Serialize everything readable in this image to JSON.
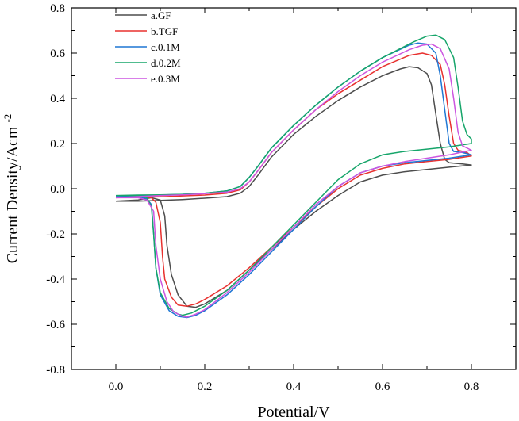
{
  "chart_data": {
    "type": "line",
    "title": "",
    "xlabel": "Potential/V",
    "ylabel": {
      "text": "Current Density/Acm",
      "superscript": "-2"
    },
    "xlim": [
      -0.1,
      0.9
    ],
    "ylim": [
      -0.8,
      0.8
    ],
    "xticks": [
      0.0,
      0.2,
      0.4,
      0.6,
      0.8
    ],
    "yticks": [
      -0.8,
      -0.6,
      -0.4,
      -0.2,
      0.0,
      0.2,
      0.4,
      0.6,
      0.8
    ],
    "xtick_labels": [
      "0.0",
      "0.2",
      "0.4",
      "0.6",
      "0.8"
    ],
    "ytick_labels": [
      "-0.8",
      "-0.6",
      "-0.4",
      "-0.2",
      "0.0",
      "0.2",
      "0.4",
      "0.6",
      "0.8"
    ],
    "grid": false,
    "legend_position": "top-left",
    "series": [
      {
        "name": "a.GF",
        "color": "#4d4d4d",
        "points": [
          [
            0.0,
            -0.055
          ],
          [
            0.05,
            -0.05
          ],
          [
            0.08,
            -0.04
          ],
          [
            0.1,
            -0.05
          ],
          [
            0.11,
            -0.12
          ],
          [
            0.115,
            -0.25
          ],
          [
            0.125,
            -0.38
          ],
          [
            0.14,
            -0.47
          ],
          [
            0.16,
            -0.52
          ],
          [
            0.18,
            -0.525
          ],
          [
            0.2,
            -0.51
          ],
          [
            0.25,
            -0.45
          ],
          [
            0.3,
            -0.36
          ],
          [
            0.35,
            -0.27
          ],
          [
            0.4,
            -0.18
          ],
          [
            0.45,
            -0.1
          ],
          [
            0.5,
            -0.03
          ],
          [
            0.55,
            0.03
          ],
          [
            0.6,
            0.06
          ],
          [
            0.65,
            0.075
          ],
          [
            0.7,
            0.085
          ],
          [
            0.75,
            0.095
          ],
          [
            0.8,
            0.105
          ],
          [
            0.78,
            0.11
          ],
          [
            0.75,
            0.115
          ],
          [
            0.74,
            0.13
          ],
          [
            0.73,
            0.2
          ],
          [
            0.72,
            0.33
          ],
          [
            0.71,
            0.46
          ],
          [
            0.7,
            0.51
          ],
          [
            0.68,
            0.535
          ],
          [
            0.66,
            0.54
          ],
          [
            0.64,
            0.53
          ],
          [
            0.6,
            0.5
          ],
          [
            0.55,
            0.45
          ],
          [
            0.5,
            0.39
          ],
          [
            0.45,
            0.32
          ],
          [
            0.4,
            0.24
          ],
          [
            0.35,
            0.14
          ],
          [
            0.32,
            0.06
          ],
          [
            0.3,
            0.01
          ],
          [
            0.28,
            -0.02
          ],
          [
            0.25,
            -0.035
          ],
          [
            0.2,
            -0.042
          ],
          [
            0.15,
            -0.048
          ],
          [
            0.1,
            -0.052
          ],
          [
            0.05,
            -0.055
          ],
          [
            0.0,
            -0.055
          ]
        ]
      },
      {
        "name": "b.TGF",
        "color": "#e8312f",
        "points": [
          [
            0.0,
            -0.04
          ],
          [
            0.05,
            -0.035
          ],
          [
            0.08,
            -0.04
          ],
          [
            0.09,
            -0.06
          ],
          [
            0.1,
            -0.15
          ],
          [
            0.105,
            -0.3
          ],
          [
            0.11,
            -0.4
          ],
          [
            0.125,
            -0.48
          ],
          [
            0.14,
            -0.515
          ],
          [
            0.16,
            -0.52
          ],
          [
            0.18,
            -0.51
          ],
          [
            0.2,
            -0.49
          ],
          [
            0.25,
            -0.43
          ],
          [
            0.3,
            -0.35
          ],
          [
            0.35,
            -0.26
          ],
          [
            0.4,
            -0.17
          ],
          [
            0.45,
            -0.08
          ],
          [
            0.5,
            0.0
          ],
          [
            0.55,
            0.06
          ],
          [
            0.6,
            0.09
          ],
          [
            0.65,
            0.11
          ],
          [
            0.7,
            0.12
          ],
          [
            0.75,
            0.13
          ],
          [
            0.8,
            0.145
          ],
          [
            0.79,
            0.16
          ],
          [
            0.77,
            0.17
          ],
          [
            0.76,
            0.2
          ],
          [
            0.75,
            0.32
          ],
          [
            0.74,
            0.46
          ],
          [
            0.73,
            0.55
          ],
          [
            0.71,
            0.59
          ],
          [
            0.69,
            0.6
          ],
          [
            0.66,
            0.59
          ],
          [
            0.6,
            0.54
          ],
          [
            0.55,
            0.48
          ],
          [
            0.5,
            0.42
          ],
          [
            0.45,
            0.35
          ],
          [
            0.4,
            0.26
          ],
          [
            0.35,
            0.16
          ],
          [
            0.32,
            0.08
          ],
          [
            0.3,
            0.03
          ],
          [
            0.28,
            -0.005
          ],
          [
            0.25,
            -0.02
          ],
          [
            0.2,
            -0.028
          ],
          [
            0.15,
            -0.032
          ],
          [
            0.1,
            -0.036
          ],
          [
            0.05,
            -0.038
          ],
          [
            0.0,
            -0.04
          ]
        ]
      },
      {
        "name": "c.0.1M",
        "color": "#1f77d4",
        "points": [
          [
            0.0,
            -0.035
          ],
          [
            0.05,
            -0.035
          ],
          [
            0.07,
            -0.045
          ],
          [
            0.08,
            -0.07
          ],
          [
            0.085,
            -0.2
          ],
          [
            0.09,
            -0.35
          ],
          [
            0.1,
            -0.47
          ],
          [
            0.12,
            -0.54
          ],
          [
            0.14,
            -0.565
          ],
          [
            0.16,
            -0.57
          ],
          [
            0.18,
            -0.56
          ],
          [
            0.2,
            -0.54
          ],
          [
            0.25,
            -0.47
          ],
          [
            0.3,
            -0.38
          ],
          [
            0.35,
            -0.28
          ],
          [
            0.4,
            -0.18
          ],
          [
            0.45,
            -0.08
          ],
          [
            0.5,
            0.01
          ],
          [
            0.55,
            0.07
          ],
          [
            0.6,
            0.1
          ],
          [
            0.65,
            0.115
          ],
          [
            0.7,
            0.125
          ],
          [
            0.75,
            0.135
          ],
          [
            0.8,
            0.15
          ],
          [
            0.78,
            0.16
          ],
          [
            0.76,
            0.165
          ],
          [
            0.75,
            0.2
          ],
          [
            0.74,
            0.35
          ],
          [
            0.73,
            0.5
          ],
          [
            0.72,
            0.6
          ],
          [
            0.7,
            0.64
          ],
          [
            0.68,
            0.645
          ],
          [
            0.66,
            0.635
          ],
          [
            0.6,
            0.58
          ],
          [
            0.55,
            0.52
          ],
          [
            0.5,
            0.45
          ],
          [
            0.45,
            0.37
          ],
          [
            0.4,
            0.28
          ],
          [
            0.35,
            0.18
          ],
          [
            0.32,
            0.1
          ],
          [
            0.3,
            0.05
          ],
          [
            0.28,
            0.01
          ],
          [
            0.25,
            -0.01
          ],
          [
            0.2,
            -0.02
          ],
          [
            0.15,
            -0.025
          ],
          [
            0.1,
            -0.028
          ],
          [
            0.05,
            -0.032
          ],
          [
            0.0,
            -0.035
          ]
        ]
      },
      {
        "name": "d.0.2M",
        "color": "#16a56a",
        "points": [
          [
            0.0,
            -0.03
          ],
          [
            0.05,
            -0.03
          ],
          [
            0.07,
            -0.04
          ],
          [
            0.08,
            -0.08
          ],
          [
            0.085,
            -0.2
          ],
          [
            0.09,
            -0.35
          ],
          [
            0.1,
            -0.46
          ],
          [
            0.12,
            -0.53
          ],
          [
            0.14,
            -0.555
          ],
          [
            0.15,
            -0.56
          ],
          [
            0.17,
            -0.55
          ],
          [
            0.2,
            -0.52
          ],
          [
            0.25,
            -0.45
          ],
          [
            0.3,
            -0.36
          ],
          [
            0.35,
            -0.26
          ],
          [
            0.4,
            -0.16
          ],
          [
            0.45,
            -0.06
          ],
          [
            0.5,
            0.04
          ],
          [
            0.55,
            0.11
          ],
          [
            0.6,
            0.15
          ],
          [
            0.65,
            0.165
          ],
          [
            0.7,
            0.175
          ],
          [
            0.75,
            0.185
          ],
          [
            0.8,
            0.2
          ],
          [
            0.8,
            0.22
          ],
          [
            0.79,
            0.24
          ],
          [
            0.78,
            0.3
          ],
          [
            0.77,
            0.45
          ],
          [
            0.76,
            0.58
          ],
          [
            0.74,
            0.66
          ],
          [
            0.72,
            0.68
          ],
          [
            0.7,
            0.675
          ],
          [
            0.67,
            0.65
          ],
          [
            0.6,
            0.58
          ],
          [
            0.55,
            0.52
          ],
          [
            0.5,
            0.45
          ],
          [
            0.45,
            0.37
          ],
          [
            0.4,
            0.28
          ],
          [
            0.35,
            0.18
          ],
          [
            0.32,
            0.1
          ],
          [
            0.3,
            0.05
          ],
          [
            0.28,
            0.01
          ],
          [
            0.25,
            -0.01
          ],
          [
            0.2,
            -0.02
          ],
          [
            0.15,
            -0.025
          ],
          [
            0.1,
            -0.027
          ],
          [
            0.05,
            -0.028
          ],
          [
            0.0,
            -0.03
          ]
        ]
      },
      {
        "name": "e.0.3M",
        "color": "#cc55e0",
        "points": [
          [
            0.0,
            -0.04
          ],
          [
            0.05,
            -0.04
          ],
          [
            0.07,
            -0.05
          ],
          [
            0.085,
            -0.1
          ],
          [
            0.09,
            -0.25
          ],
          [
            0.1,
            -0.4
          ],
          [
            0.115,
            -0.5
          ],
          [
            0.13,
            -0.545
          ],
          [
            0.15,
            -0.565
          ],
          [
            0.16,
            -0.568
          ],
          [
            0.18,
            -0.555
          ],
          [
            0.2,
            -0.535
          ],
          [
            0.25,
            -0.46
          ],
          [
            0.3,
            -0.37
          ],
          [
            0.35,
            -0.27
          ],
          [
            0.4,
            -0.17
          ],
          [
            0.45,
            -0.07
          ],
          [
            0.5,
            0.01
          ],
          [
            0.55,
            0.07
          ],
          [
            0.6,
            0.1
          ],
          [
            0.65,
            0.12
          ],
          [
            0.7,
            0.135
          ],
          [
            0.75,
            0.15
          ],
          [
            0.8,
            0.17
          ],
          [
            0.79,
            0.18
          ],
          [
            0.78,
            0.19
          ],
          [
            0.77,
            0.25
          ],
          [
            0.76,
            0.4
          ],
          [
            0.75,
            0.53
          ],
          [
            0.73,
            0.62
          ],
          [
            0.71,
            0.64
          ],
          [
            0.69,
            0.635
          ],
          [
            0.66,
            0.615
          ],
          [
            0.6,
            0.56
          ],
          [
            0.55,
            0.5
          ],
          [
            0.5,
            0.43
          ],
          [
            0.45,
            0.35
          ],
          [
            0.4,
            0.26
          ],
          [
            0.35,
            0.16
          ],
          [
            0.32,
            0.08
          ],
          [
            0.3,
            0.03
          ],
          [
            0.28,
            0.0
          ],
          [
            0.25,
            -0.015
          ],
          [
            0.2,
            -0.022
          ],
          [
            0.15,
            -0.027
          ],
          [
            0.1,
            -0.03
          ],
          [
            0.05,
            -0.035
          ],
          [
            0.0,
            -0.04
          ]
        ]
      }
    ]
  }
}
